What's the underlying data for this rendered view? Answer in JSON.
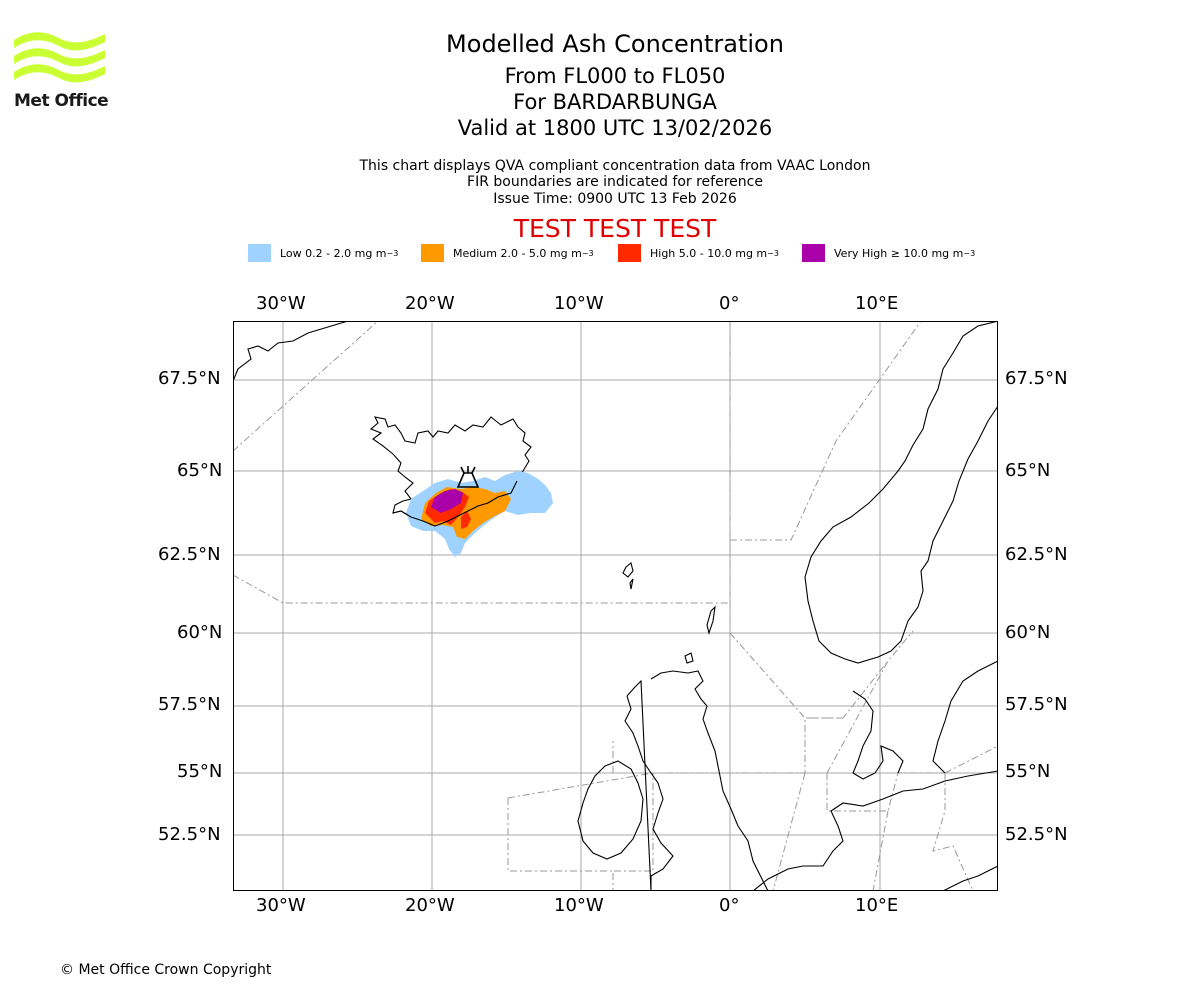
{
  "logo": {
    "text": "Met Office",
    "color": "#c9ff33"
  },
  "titles": {
    "main": "Modelled Ash Concentration",
    "levels": "From FL000 to FL050",
    "volcano": "For BARDARBUNGA",
    "valid": "Valid at 1800 UTC 13/02/2026"
  },
  "description": {
    "line1": "This chart displays QVA compliant concentration data from VAAC London",
    "line2": "FIR boundaries are indicated for reference",
    "line3": "Issue Time: 0900 UTC 13 Feb 2026"
  },
  "test_banner": "TEST TEST TEST",
  "legend": [
    {
      "label": "Low 0.2 - 2.0 mg m",
      "color": "#a0d2ff"
    },
    {
      "label": "Medium 2.0 - 5.0 mg m",
      "color": "#ff9900"
    },
    {
      "label": "High 5.0 - 10.0 mg m",
      "color": "#ff2a00"
    },
    {
      "label": "Very High ≥ 10.0 mg m",
      "color": "#aa00aa"
    }
  ],
  "legend_exponent": "−3",
  "map": {
    "lon_labels": [
      "30°W",
      "20°W",
      "10°W",
      "0°",
      "10°E"
    ],
    "lat_labels": [
      "67.5°N",
      "65°N",
      "62.5°N",
      "60°N",
      "57.5°N",
      "55°N",
      "52.5°N"
    ]
  },
  "copyright": "© Met Office Crown Copyright"
}
